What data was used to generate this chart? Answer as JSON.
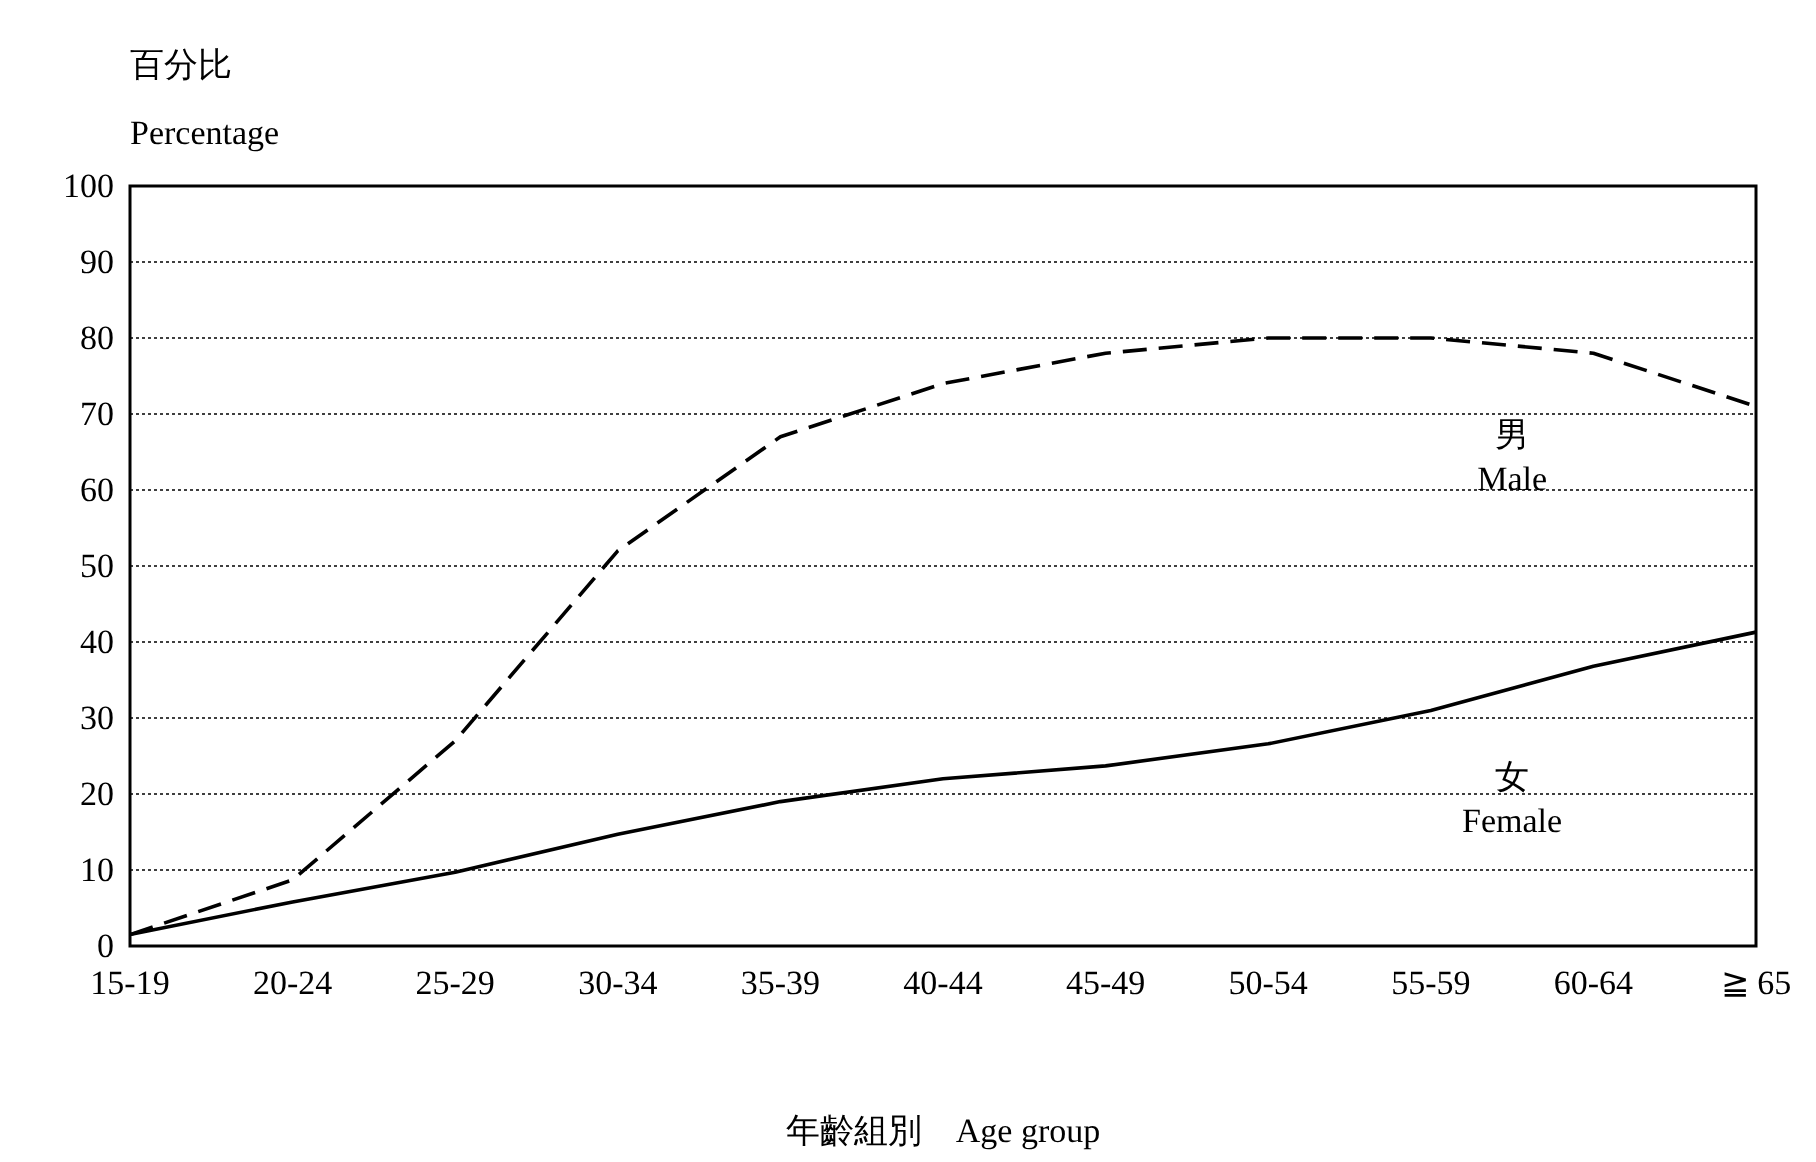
{
  "chart_data": {
    "type": "line",
    "ylabel": "百分比 Percentage",
    "xlabel": "年齡組別　Age group",
    "categories": [
      "15-19",
      "20-24",
      "25-29",
      "30-34",
      "35-39",
      "40-44",
      "45-49",
      "50-54",
      "55-59",
      "60-64",
      "≧ 65"
    ],
    "series": [
      {
        "name": "男 Male",
        "color": "#000000",
        "line_style": "dashed",
        "values": [
          1.5,
          8.7,
          27,
          52,
          67,
          74,
          78,
          80,
          80,
          78,
          71
        ]
      },
      {
        "name": "女 Female",
        "color": "#000000",
        "line_style": "solid",
        "values": [
          1.5,
          5.8,
          9.7,
          14.7,
          19,
          22,
          23.7,
          26.6,
          31,
          36.8,
          41.3
        ]
      }
    ],
    "ylim": [
      0,
      100
    ],
    "yticks": [
      0,
      10,
      20,
      30,
      40,
      50,
      60,
      70,
      80,
      90,
      100
    ],
    "grid": "y",
    "marker": "none"
  }
}
